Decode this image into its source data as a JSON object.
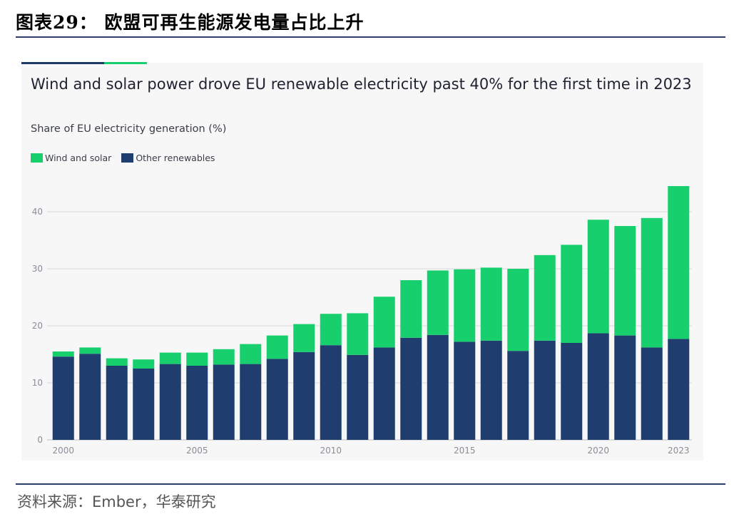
{
  "figure_title": "图表29： 欧盟可再生能源发电量占比上升",
  "source": "资料来源：Ember，华泰研究",
  "colors": {
    "wind_and_solar": "#18cf6e",
    "other_renewables": "#1f3d6e",
    "gridline": "#d9d9d9",
    "tick_text": "#8a8d96"
  },
  "chart_data": {
    "type": "bar",
    "stacked": true,
    "title": "Wind and solar power drove EU renewable electricity past 40% for the first time in 2023",
    "subtitle": "Share of EU electricity generation (%)",
    "xlabel": "",
    "ylabel": "",
    "ylim": [
      0,
      45
    ],
    "yticks": [
      0,
      10,
      20,
      30,
      40
    ],
    "grid": true,
    "legend_position": "top-left",
    "categories": [
      2000,
      2001,
      2002,
      2003,
      2004,
      2005,
      2006,
      2007,
      2008,
      2009,
      2010,
      2011,
      2012,
      2013,
      2014,
      2015,
      2016,
      2017,
      2018,
      2019,
      2020,
      2021,
      2022,
      2023
    ],
    "xtick_labels": [
      "2000",
      "2005",
      "2010",
      "2015",
      "2020",
      "2023"
    ],
    "series": [
      {
        "name": "Other renewables",
        "values": [
          14.6,
          15.1,
          13.0,
          12.5,
          13.3,
          13.0,
          13.2,
          13.3,
          14.2,
          15.4,
          16.6,
          14.9,
          16.2,
          17.9,
          18.4,
          17.2,
          17.4,
          15.6,
          17.4,
          17.0,
          18.7,
          18.3,
          16.2,
          17.7
        ]
      },
      {
        "name": "Wind and solar",
        "values": [
          0.9,
          1.1,
          1.3,
          1.6,
          2.0,
          2.3,
          2.7,
          3.5,
          4.1,
          4.9,
          5.5,
          7.3,
          8.9,
          10.1,
          11.3,
          12.7,
          12.8,
          14.4,
          15.0,
          17.2,
          19.9,
          19.2,
          22.7,
          26.8
        ]
      }
    ]
  }
}
